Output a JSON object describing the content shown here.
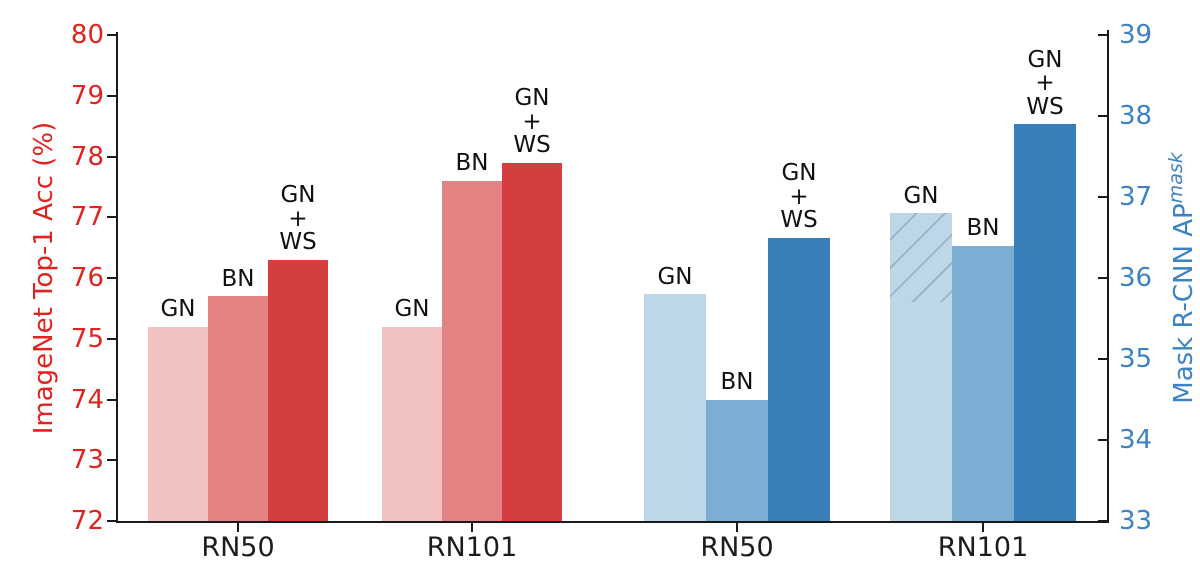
{
  "chart_data": {
    "type": "bar",
    "title": "",
    "left_axis": {
      "label": "ImageNet Top-1 Acc (%)",
      "color": "#e0231f",
      "min": 72,
      "max": 80,
      "ticks": [
        80,
        79,
        78,
        77,
        76,
        75,
        74,
        73,
        72
      ]
    },
    "right_axis": {
      "label": "Mask R-CNN AP",
      "label_superscript": "mask",
      "color": "#3e82c4",
      "min": 33,
      "max": 39,
      "ticks": [
        39,
        38,
        37,
        36,
        35,
        34,
        33
      ]
    },
    "palettes": {
      "red": [
        "#f2c1c1",
        "#e28282",
        "#d53e3e"
      ],
      "blue": [
        "#bdd7e9",
        "#7cadd2",
        "#387fba"
      ]
    },
    "hatch_line_color": "#9db4c8",
    "groups": [
      {
        "category": "RN50",
        "axis": "left",
        "palette": "red",
        "bars": [
          {
            "label": "GN",
            "value": 75.2
          },
          {
            "label": "BN",
            "value": 75.7
          },
          {
            "label": "GN\n+\nWS",
            "value": 76.3
          }
        ]
      },
      {
        "category": "RN101",
        "axis": "left",
        "palette": "red",
        "bars": [
          {
            "label": "GN",
            "value": 75.2
          },
          {
            "label": "BN",
            "value": 77.6
          },
          {
            "label": "GN\n+\nWS",
            "value": 77.9
          }
        ]
      },
      {
        "category": "RN50",
        "axis": "right",
        "palette": "blue",
        "bars": [
          {
            "label": "GN",
            "value": 35.8
          },
          {
            "label": "BN",
            "value": 34.5
          },
          {
            "label": "GN\n+\nWS",
            "value": 36.5
          }
        ]
      },
      {
        "category": "RN101",
        "axis": "right",
        "palette": "blue",
        "bars": [
          {
            "label": "GN",
            "value": 36.8,
            "hatch_from": 35.7
          },
          {
            "label": "BN",
            "value": 36.4
          },
          {
            "label": "GN\n+\nWS",
            "value": 37.9
          }
        ]
      }
    ]
  }
}
